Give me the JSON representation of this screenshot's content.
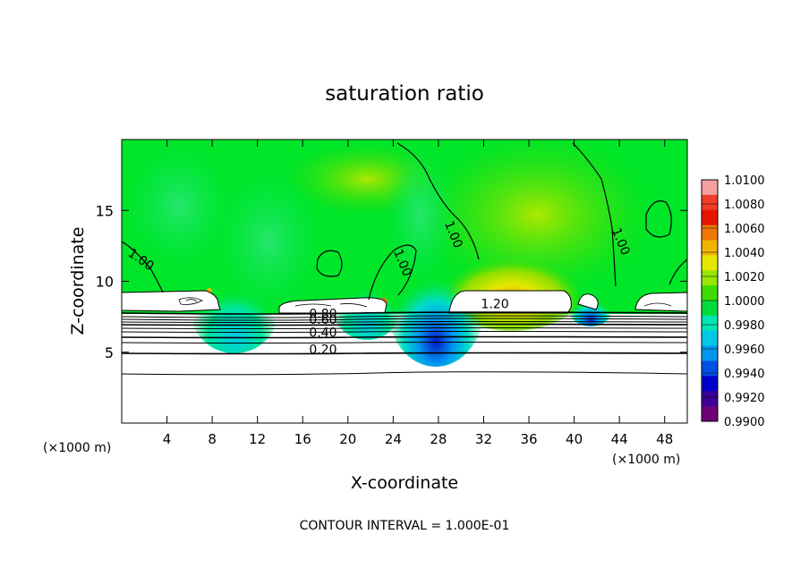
{
  "chart_data": {
    "type": "heatmap",
    "title": "saturation ratio",
    "xlabel": "X-coordinate",
    "ylabel": "Z-coordinate",
    "x_unit_left": "(×1000 m)",
    "x_unit_right": "(×1000 m)",
    "footer": "CONTOUR INTERVAL = 1.000E-01",
    "xlim": [
      0,
      50
    ],
    "ylim": [
      0,
      20
    ],
    "x_ticks": [
      4,
      8,
      12,
      16,
      20,
      24,
      28,
      32,
      36,
      40,
      44,
      48
    ],
    "y_ticks": [
      5,
      10,
      15
    ],
    "colorbar": {
      "levels": [
        "1.0100",
        "1.0080",
        "1.0060",
        "1.0040",
        "1.0020",
        "1.0000",
        "0.9980",
        "0.9960",
        "0.9940",
        "0.9920",
        "0.9900"
      ],
      "colors": [
        "#f4a0a0",
        "#f03c28",
        "#e81400",
        "#f07800",
        "#f0b400",
        "#e6e600",
        "#96e600",
        "#3cdc00",
        "#00dc3c",
        "#00e6b4",
        "#00c8e6",
        "#0096f0",
        "#0050e6",
        "#0000c8",
        "#3c0096",
        "#6e0078"
      ]
    },
    "contour_labels": [
      {
        "text": "1.00",
        "x": 1.5,
        "z": 11.3
      },
      {
        "text": "1.00",
        "x": 24.5,
        "z": 11.2
      },
      {
        "text": "1.00",
        "x": 29.0,
        "z": 13.2
      },
      {
        "text": "1.00",
        "x": 43.8,
        "z": 12.7
      },
      {
        "text": "1.20",
        "x": 33.0,
        "z": 8.1
      },
      {
        "text": "0.80",
        "x": 17.8,
        "z": 7.4
      },
      {
        "text": "0.60",
        "x": 17.8,
        "z": 7.0
      },
      {
        "text": "0.40",
        "x": 17.8,
        "z": 6.1
      },
      {
        "text": "0.20",
        "x": 17.8,
        "z": 4.9
      }
    ],
    "background_field": "S ≈ 1.0000 (green) above z ≈ 8; cloud regions S > 1.20 near z ≈ 8–9; subsaturated layers below z ≈ 8 with contours 0.20–0.80"
  }
}
